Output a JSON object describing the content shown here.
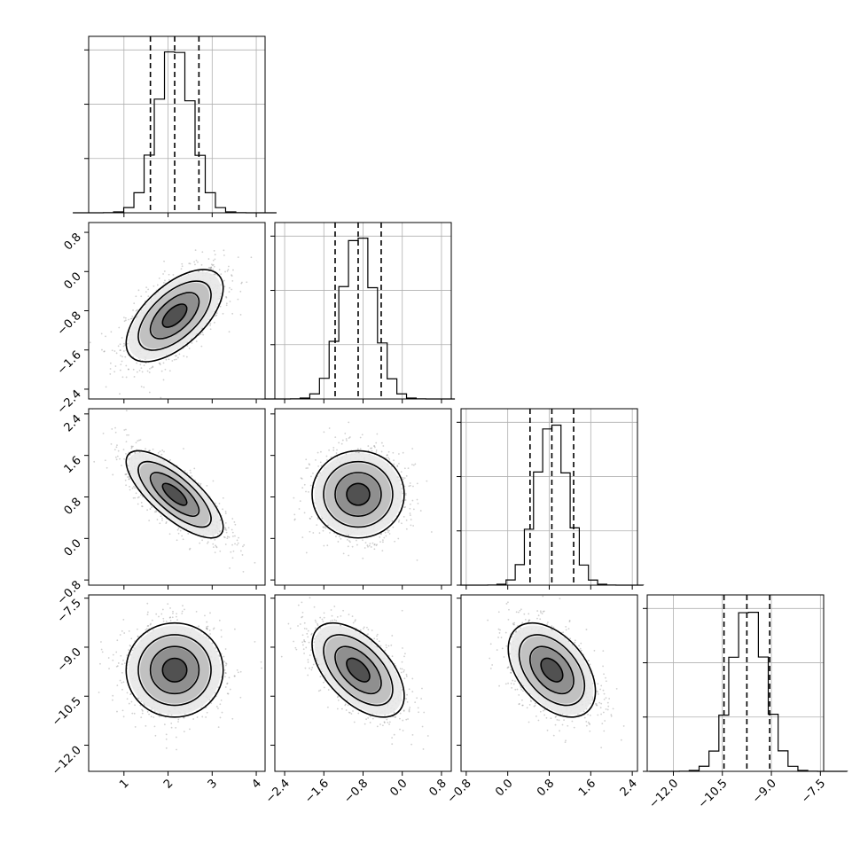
{
  "chart_data": {
    "type": "corner",
    "parameters": [
      {
        "mean": 2.15,
        "sd": 0.55,
        "range": [
          0.2,
          4.2
        ],
        "ticks": [
          1,
          2,
          3,
          4
        ],
        "tick_labels": [
          "1",
          "2",
          "3",
          "4"
        ],
        "quantiles": [
          1.6,
          2.15,
          2.7
        ]
      },
      {
        "mean": -0.9,
        "sd": 0.47,
        "range": [
          -2.6,
          1.0
        ],
        "ticks": [
          -2.4,
          -1.6,
          -0.8,
          0.0,
          0.8
        ],
        "tick_labels": [
          "−2.4",
          "−1.6",
          "−0.8",
          "0.0",
          "0.8"
        ],
        "quantiles": [
          -1.37,
          -0.9,
          -0.43
        ]
      },
      {
        "mean": 0.85,
        "sd": 0.42,
        "range": [
          -0.9,
          2.5
        ],
        "ticks": [
          -0.8,
          0.0,
          0.8,
          1.6,
          2.4
        ],
        "tick_labels": [
          "−0.8",
          "0.0",
          "0.8",
          "1.6",
          "2.4"
        ],
        "quantiles": [
          0.43,
          0.85,
          1.27
        ]
      },
      {
        "mean": -9.7,
        "sd": 0.72,
        "range": [
          -12.8,
          -7.4
        ],
        "ticks": [
          -12.0,
          -10.5,
          -9.0,
          -7.5
        ],
        "tick_labels": [
          "−12.0",
          "−10.5",
          "−9.0",
          "−7.5"
        ],
        "quantiles": [
          -10.45,
          -9.75,
          -9.05
        ]
      }
    ],
    "correlations": [
      [
        1.0,
        0.6,
        -0.75,
        0.0
      ],
      [
        0.6,
        1.0,
        0.0,
        -0.55
      ],
      [
        -0.75,
        0.0,
        1.0,
        -0.45
      ],
      [
        0.0,
        -0.55,
        -0.45,
        1.0
      ]
    ],
    "histogram_bins": 20,
    "contour_levels_sigma": [
      0.5,
      1.0,
      1.5,
      2.0
    ],
    "grid": true,
    "colors": {
      "lines": "#000000",
      "points": "#777777",
      "grid": "#b0b0b0"
    }
  }
}
